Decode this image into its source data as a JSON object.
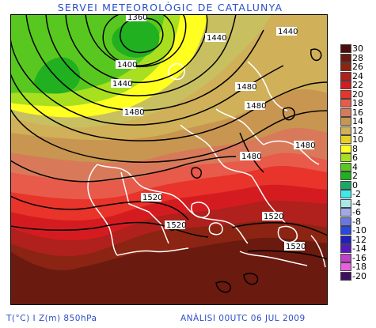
{
  "title": "SERVEI METEOROLÒGIC DE CATALUNYA",
  "footer": {
    "variables": "T(°C) I Z(m) 850hPa",
    "analysis": "ANÀLISI 00UTC 06 JUL 2009"
  },
  "legend": {
    "entries": [
      {
        "label": "30",
        "color": "#4a0f0a"
      },
      {
        "label": "28",
        "color": "#6b1a10"
      },
      {
        "label": "26",
        "color": "#8b2412"
      },
      {
        "label": "24",
        "color": "#b0201c"
      },
      {
        "label": "22",
        "color": "#d41c20"
      },
      {
        "label": "20",
        "color": "#e8342a"
      },
      {
        "label": "18",
        "color": "#e85a4a"
      },
      {
        "label": "16",
        "color": "#d87a5a"
      },
      {
        "label": "14",
        "color": "#c89650"
      },
      {
        "label": "12",
        "color": "#d0b058"
      },
      {
        "label": "10",
        "color": "#e8d020"
      },
      {
        "label": "8",
        "color": "#ffff20"
      },
      {
        "label": "6",
        "color": "#a8e020"
      },
      {
        "label": "4",
        "color": "#58c820"
      },
      {
        "label": "2",
        "color": "#20b020"
      },
      {
        "label": "0",
        "color": "#18a868"
      },
      {
        "label": "-2",
        "color": "#40e8e8"
      },
      {
        "label": "-4",
        "color": "#a8e8e8"
      },
      {
        "label": "-6",
        "color": "#a0a8e8"
      },
      {
        "label": "-8",
        "color": "#6878e0"
      },
      {
        "label": "-10",
        "color": "#2848e0"
      },
      {
        "label": "-12",
        "color": "#2020c0"
      },
      {
        "label": "-14",
        "color": "#5818c0"
      },
      {
        "label": "-16",
        "color": "#c040c8"
      },
      {
        "label": "-18",
        "color": "#e860e0"
      },
      {
        "label": "-20",
        "color": "#401060"
      }
    ]
  },
  "contour_labels": [
    "1360",
    "1400",
    "1440",
    "1440",
    "1440",
    "1480",
    "1480",
    "1480",
    "1480",
    "1480",
    "1520",
    "1520",
    "1520",
    "1520"
  ]
}
